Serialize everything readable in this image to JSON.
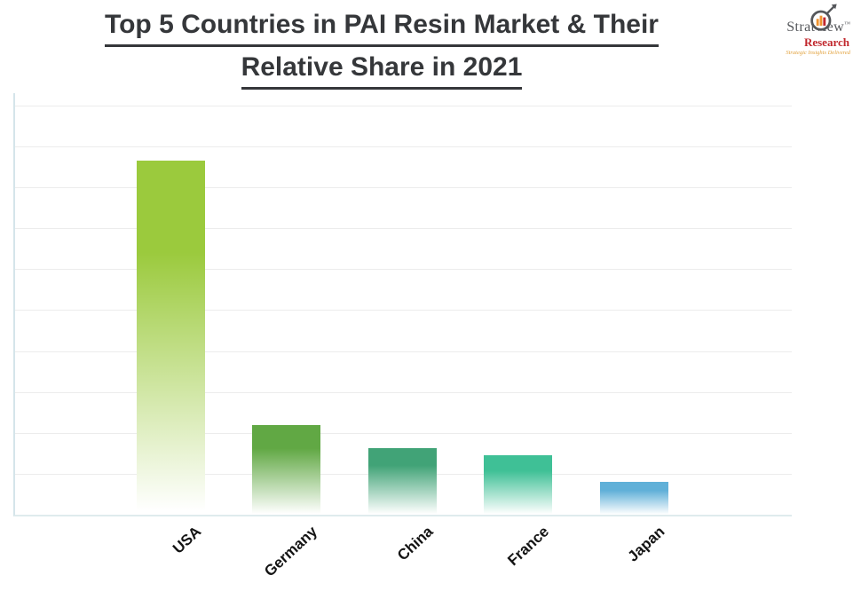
{
  "title": {
    "line1": "Top 5 Countries in PAI Resin Market & Their",
    "line2": "Relative Share in 2021",
    "color": "#35373a"
  },
  "logo": {
    "name": "Stratview",
    "trademark": "™",
    "division": "Research",
    "tagline": "Strategic Insights Delivered",
    "icon": "magnifier-barchart-icon",
    "colors": {
      "name": "#55575b",
      "division": "#c1272d",
      "tagline": "#e2a23e",
      "icon_bars": "#f0932f",
      "icon_bar_accent": "#c1272d"
    }
  },
  "chart_data": {
    "type": "bar",
    "title": "Top 5 Countries in PAI Resin Market & Their Relative Share in 2021",
    "categories": [
      "USA",
      "Germany",
      "China",
      "France",
      "Japan"
    ],
    "values": [
      8.65,
      2.2,
      1.63,
      1.45,
      0.8
    ],
    "value_note": "y-axis has no tick labels; values estimated in gridline units from pixel heights",
    "ylim": [
      0,
      10.3
    ],
    "gridline_step": 1,
    "grid": true,
    "legend": false,
    "xlabel": "",
    "ylabel": "",
    "bar_colors": [
      "#9bca3d",
      "#61a844",
      "#41a377",
      "#3fc096",
      "#60b0d8"
    ],
    "bar_fade_to": "#ffffff",
    "gridline_color": "#ececec",
    "axis_color": "#dfebed"
  }
}
